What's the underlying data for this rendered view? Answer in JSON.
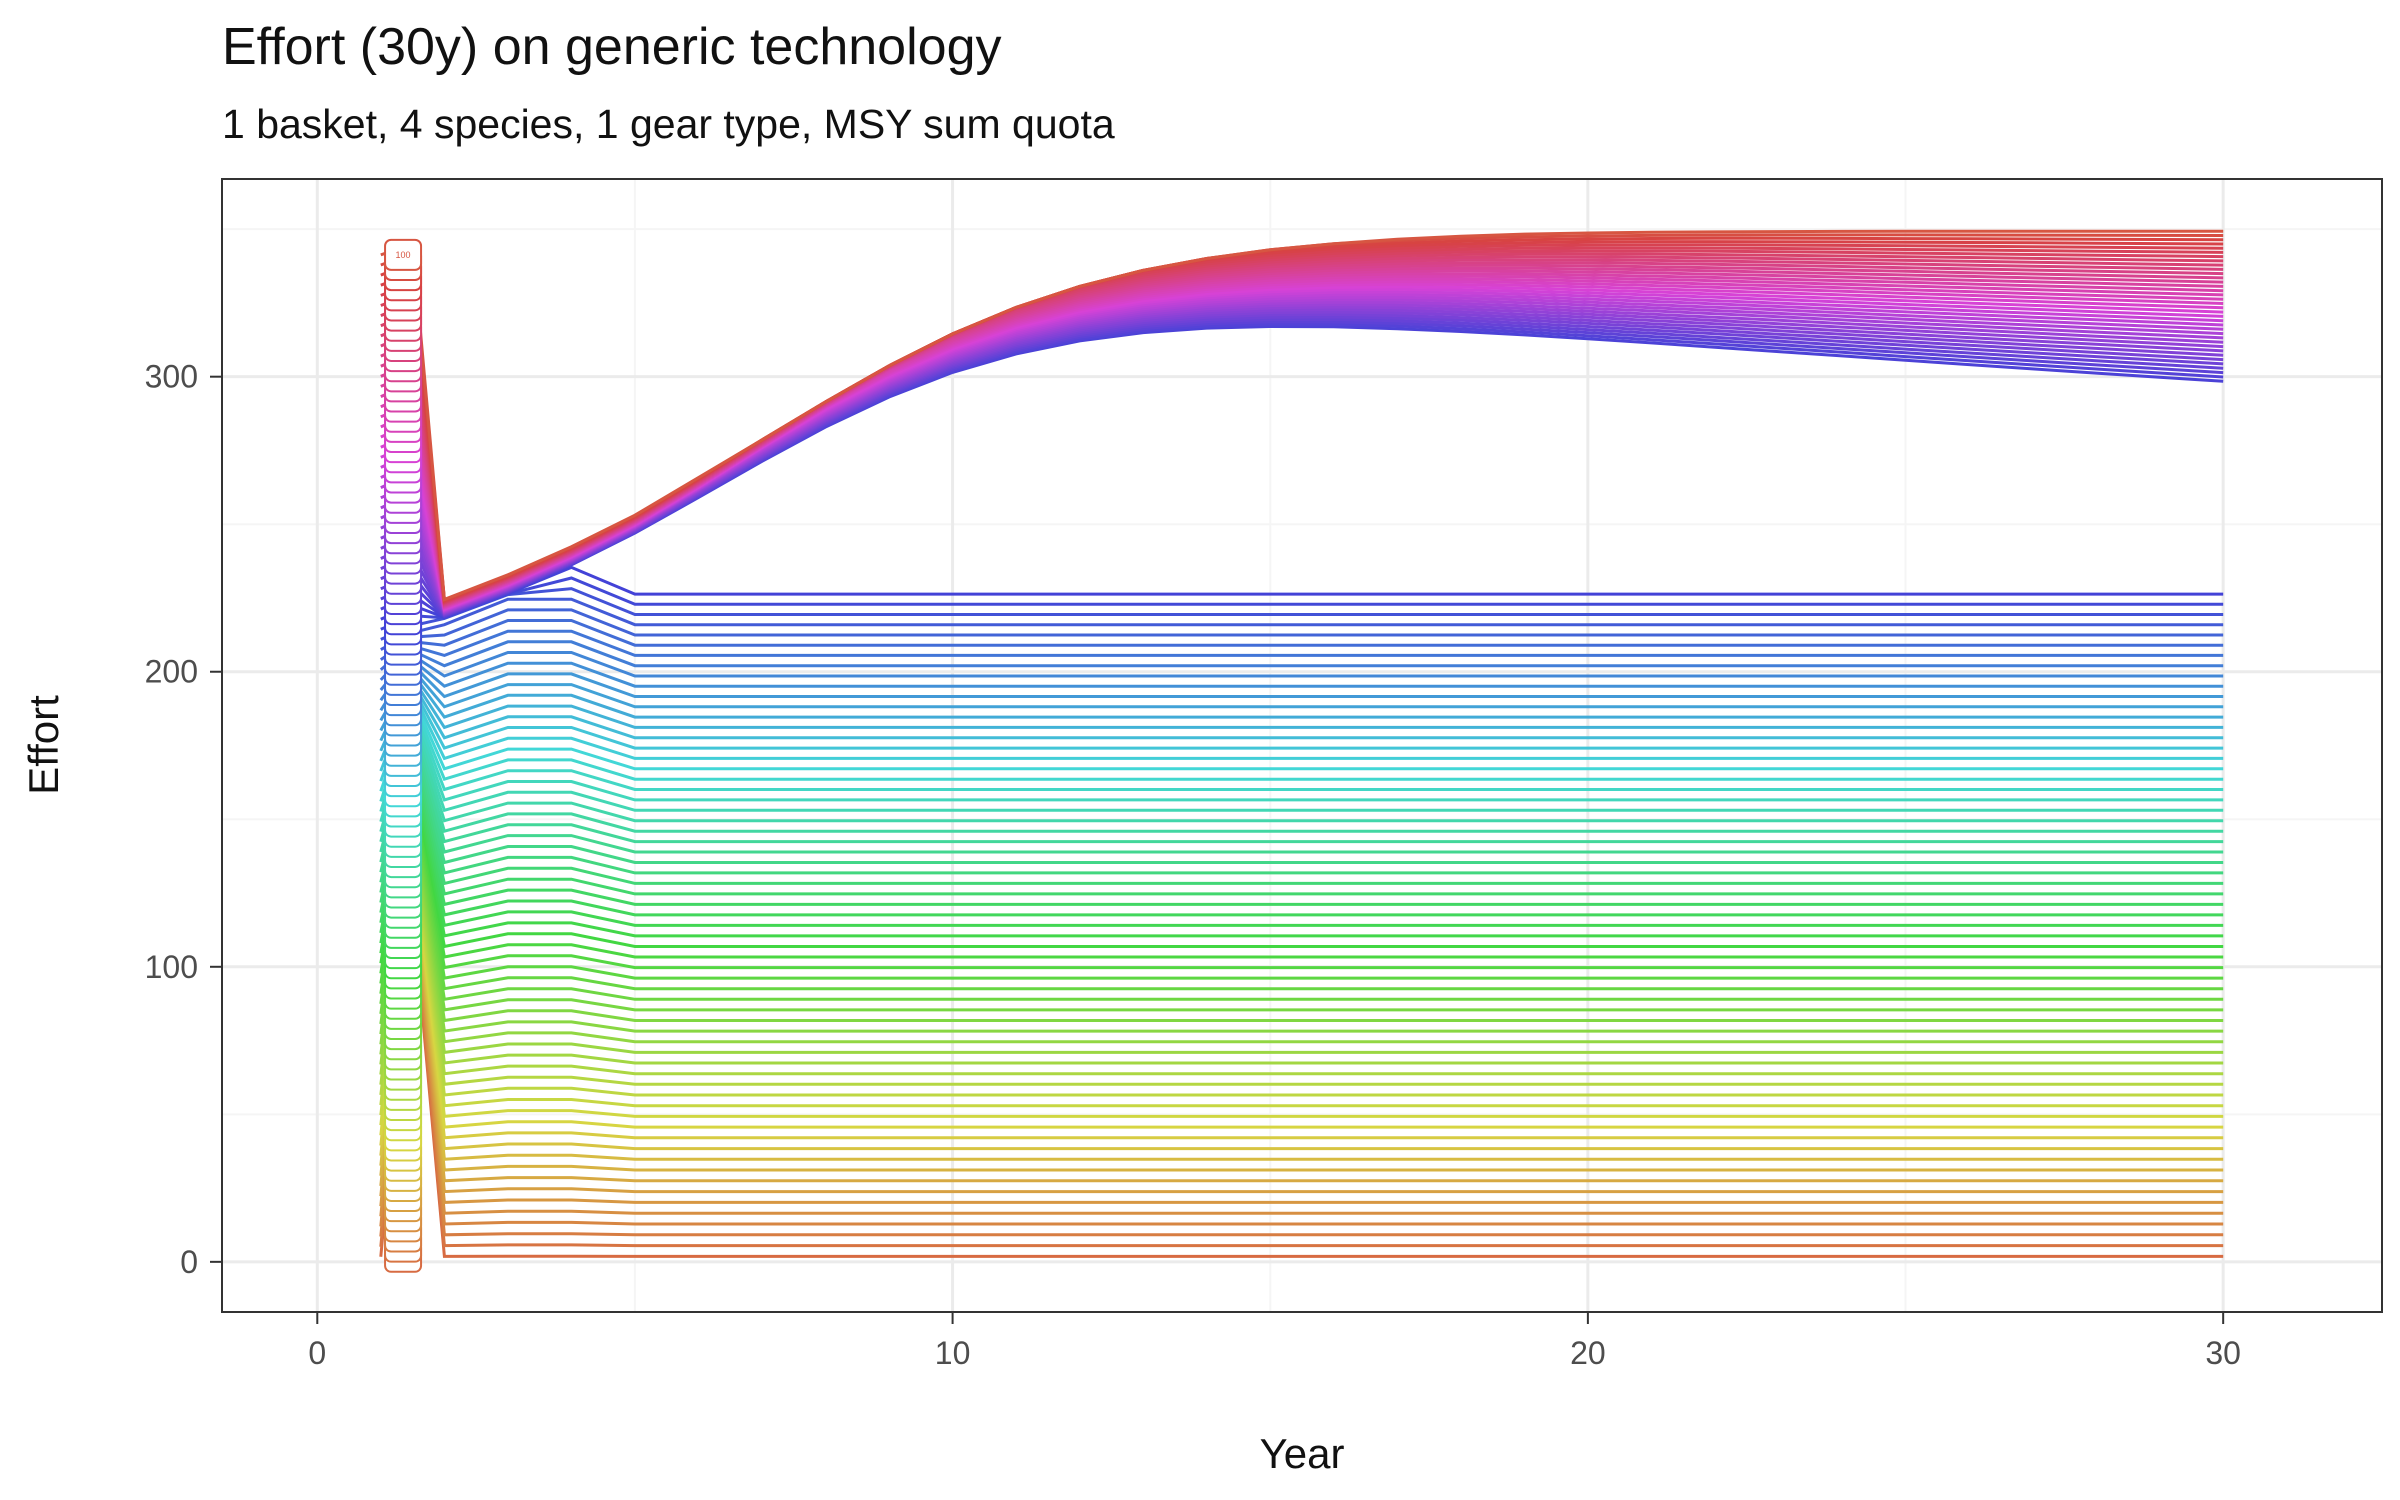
{
  "chart_data": {
    "type": "line",
    "title": "Effort (30y) on generic technology",
    "subtitle": "1 basket, 4 species, 1 gear type, MSY sum quota",
    "xlabel": "Year",
    "ylabel": "Effort",
    "xlim": [
      -1.5,
      32.5
    ],
    "ylim": [
      -17,
      367
    ],
    "x_ticks": [
      0,
      10,
      20,
      30
    ],
    "y_ticks": [
      0,
      100,
      200,
      300
    ],
    "grid": true,
    "legend": "none",
    "series_count": 100,
    "x": [
      1,
      1.5,
      2,
      3,
      4,
      5,
      6,
      7,
      8,
      9,
      10,
      11,
      12,
      13,
      14,
      15,
      16,
      17,
      18,
      19,
      20,
      21,
      22,
      23,
      24,
      25,
      26,
      27,
      28,
      29,
      30
    ],
    "start_effort_range": [
      0,
      343
    ],
    "ceiling_effort": 350,
    "series_label": "100",
    "colors": {
      "background": "#ffffff",
      "panel_border": "#333333",
      "grid_major": "#ebebeb",
      "grid_minor": "#f5f5f5",
      "tick_text": "#4d4d4d",
      "title_text": "#111111",
      "label_fill": "#ffffff"
    }
  }
}
